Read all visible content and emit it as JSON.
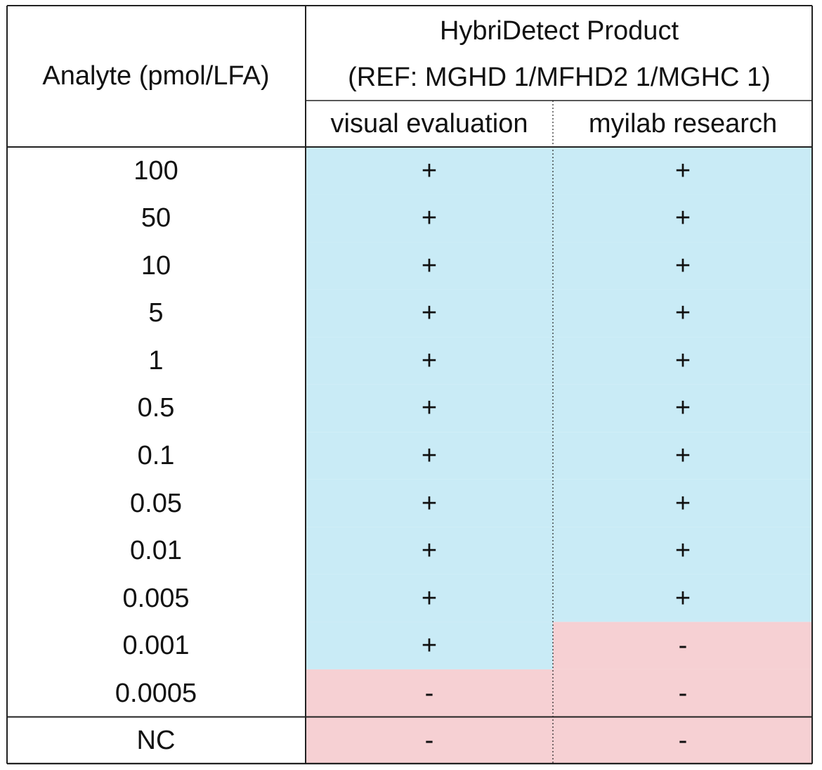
{
  "table": {
    "headers": {
      "analyte": "Analyte (pmol/LFA)",
      "product_title": "HybriDetect Product",
      "product_ref": "(REF: MGHD 1/MFHD2 1/MGHC 1)",
      "col_visual": "visual evaluation",
      "col_myilab": "myilab research"
    },
    "rows": [
      {
        "analyte": "100",
        "visual": "+",
        "myilab": "+"
      },
      {
        "analyte": "50",
        "visual": "+",
        "myilab": "+"
      },
      {
        "analyte": "10",
        "visual": "+",
        "myilab": "+"
      },
      {
        "analyte": "5",
        "visual": "+",
        "myilab": "+"
      },
      {
        "analyte": "1",
        "visual": "+",
        "myilab": "+"
      },
      {
        "analyte": "0.5",
        "visual": "+",
        "myilab": "+"
      },
      {
        "analyte": "0.1",
        "visual": "+",
        "myilab": "+"
      },
      {
        "analyte": "0.05",
        "visual": "+",
        "myilab": "+"
      },
      {
        "analyte": "0.01",
        "visual": "+",
        "myilab": "+"
      },
      {
        "analyte": "0.005",
        "visual": "+",
        "myilab": "+"
      },
      {
        "analyte": "0.001",
        "visual": "+",
        "myilab": "-"
      },
      {
        "analyte": "0.0005",
        "visual": "-",
        "myilab": "-"
      },
      {
        "analyte": "NC",
        "visual": "-",
        "myilab": "-"
      }
    ]
  },
  "colors": {
    "positive_fill": "#c9ebf6",
    "negative_fill": "#f6d0d3",
    "border": "#222222"
  }
}
